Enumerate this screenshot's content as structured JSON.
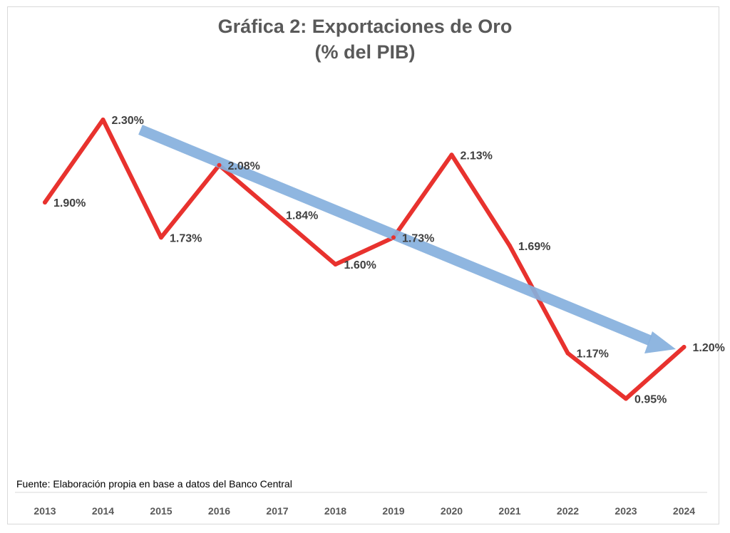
{
  "chart_data": {
    "type": "line",
    "title": "Gráfica 2: Exportaciones de Oro",
    "subtitle": "(% del PIB)",
    "categories": [
      "2013",
      "2014",
      "2015",
      "2016",
      "2017",
      "2018",
      "2019",
      "2020",
      "2021",
      "2022",
      "2023",
      "2024"
    ],
    "series": [
      {
        "values": [
          1.9,
          2.3,
          1.73,
          2.08,
          1.84,
          1.6,
          1.73,
          2.13,
          1.69,
          1.17,
          0.95,
          1.2
        ],
        "labels": [
          "1.90%",
          "2.30%",
          "1.73%",
          "2.08%",
          "1.84%",
          "1.60%",
          "1.73%",
          "2.13%",
          "1.69%",
          "1.17%",
          "0.95%",
          "1.20%"
        ],
        "color": "#e8322e"
      }
    ],
    "trend_arrow": {
      "color": "#86b0dd",
      "direction": "downward",
      "from_category": "2014",
      "to_category": "2024"
    },
    "source": "Fuente: Elaboración propia en base a datos del Banco Central",
    "grid": false,
    "legend": "none"
  }
}
